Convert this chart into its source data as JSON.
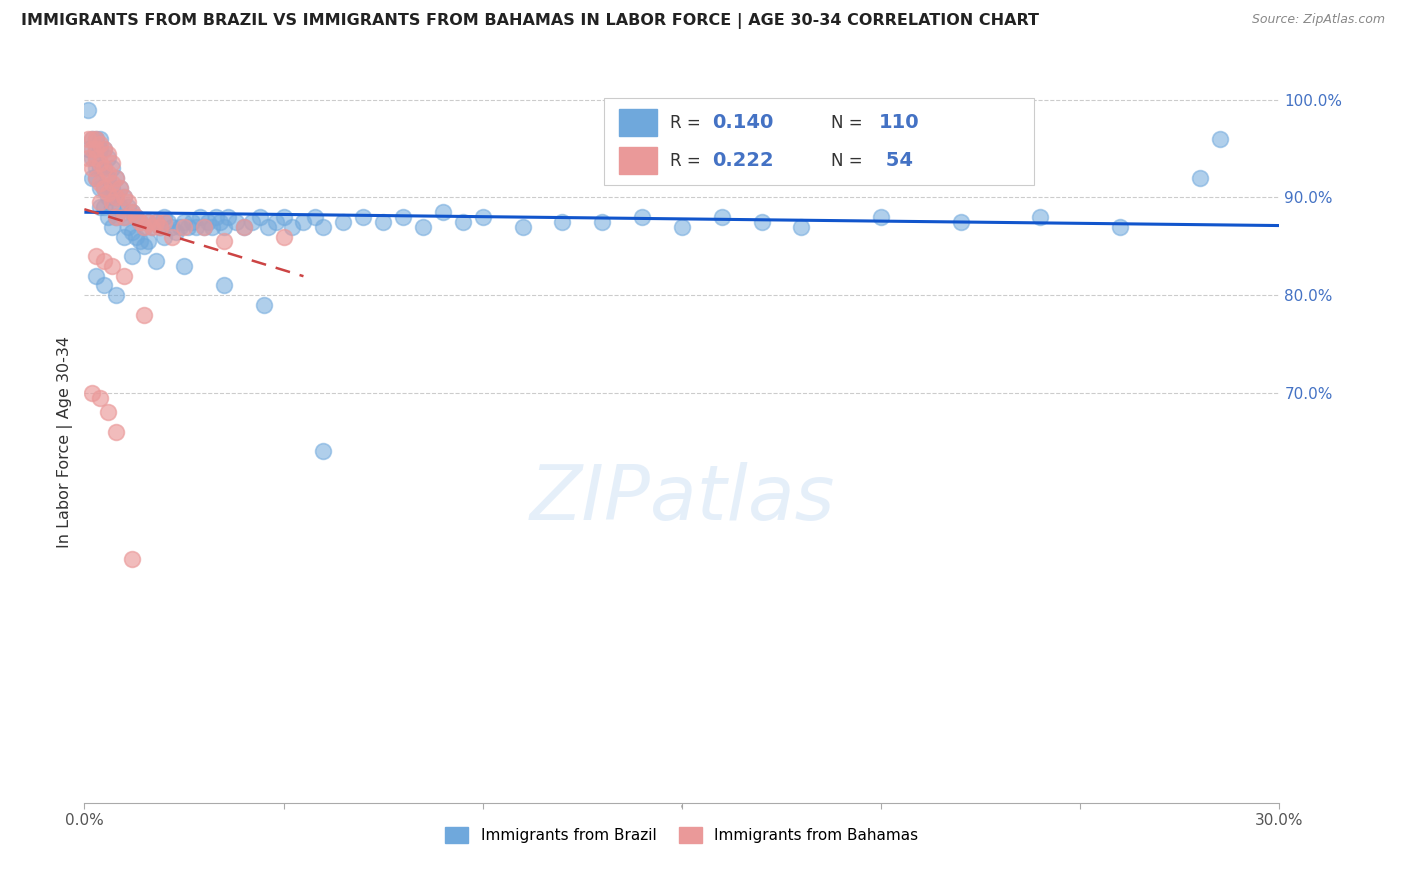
{
  "title": "IMMIGRANTS FROM BRAZIL VS IMMIGRANTS FROM BAHAMAS IN LABOR FORCE | AGE 30-34 CORRELATION CHART",
  "source": "Source: ZipAtlas.com",
  "ylabel": "In Labor Force | Age 30-34",
  "xlim": [
    0.0,
    0.3
  ],
  "ylim": [
    0.28,
    1.02
  ],
  "yticks_right": [
    0.7,
    0.8,
    0.9,
    1.0
  ],
  "ytick_right_labels": [
    "70.0%",
    "80.0%",
    "90.0%",
    "100.0%"
  ],
  "brazil_color": "#6fa8dc",
  "bahamas_color": "#ea9999",
  "brazil_line_color": "#1155cc",
  "bahamas_line_color": "#cc4444",
  "watermark": "ZIPatlas",
  "brazil_r": "0.140",
  "brazil_n": "110",
  "bahamas_r": "0.222",
  "bahamas_n": "54",
  "brazil_x": [
    0.001,
    0.001,
    0.002,
    0.002,
    0.002,
    0.003,
    0.003,
    0.003,
    0.003,
    0.003,
    0.004,
    0.004,
    0.004,
    0.004,
    0.004,
    0.005,
    0.005,
    0.005,
    0.005,
    0.006,
    0.006,
    0.006,
    0.006,
    0.007,
    0.007,
    0.007,
    0.007,
    0.008,
    0.008,
    0.008,
    0.009,
    0.009,
    0.01,
    0.01,
    0.01,
    0.011,
    0.011,
    0.012,
    0.012,
    0.013,
    0.013,
    0.014,
    0.014,
    0.015,
    0.015,
    0.016,
    0.016,
    0.017,
    0.018,
    0.019,
    0.02,
    0.02,
    0.021,
    0.022,
    0.023,
    0.024,
    0.025,
    0.026,
    0.027,
    0.028,
    0.029,
    0.03,
    0.031,
    0.032,
    0.033,
    0.034,
    0.035,
    0.036,
    0.038,
    0.04,
    0.042,
    0.044,
    0.046,
    0.048,
    0.05,
    0.052,
    0.055,
    0.058,
    0.06,
    0.065,
    0.07,
    0.075,
    0.08,
    0.085,
    0.09,
    0.095,
    0.1,
    0.11,
    0.12,
    0.13,
    0.14,
    0.15,
    0.16,
    0.17,
    0.18,
    0.2,
    0.22,
    0.24,
    0.26,
    0.28,
    0.003,
    0.005,
    0.008,
    0.012,
    0.018,
    0.025,
    0.035,
    0.045,
    0.06,
    0.285
  ],
  "brazil_y": [
    0.99,
    0.95,
    0.96,
    0.94,
    0.92,
    0.96,
    0.95,
    0.94,
    0.93,
    0.92,
    0.96,
    0.95,
    0.93,
    0.91,
    0.89,
    0.95,
    0.93,
    0.91,
    0.89,
    0.94,
    0.92,
    0.9,
    0.88,
    0.93,
    0.91,
    0.89,
    0.87,
    0.92,
    0.9,
    0.88,
    0.91,
    0.89,
    0.9,
    0.88,
    0.86,
    0.89,
    0.87,
    0.885,
    0.865,
    0.88,
    0.86,
    0.875,
    0.855,
    0.87,
    0.85,
    0.875,
    0.855,
    0.87,
    0.875,
    0.87,
    0.88,
    0.86,
    0.875,
    0.87,
    0.865,
    0.87,
    0.875,
    0.87,
    0.875,
    0.87,
    0.88,
    0.87,
    0.875,
    0.87,
    0.88,
    0.875,
    0.87,
    0.88,
    0.875,
    0.87,
    0.875,
    0.88,
    0.87,
    0.875,
    0.88,
    0.87,
    0.875,
    0.88,
    0.87,
    0.875,
    0.88,
    0.875,
    0.88,
    0.87,
    0.885,
    0.875,
    0.88,
    0.87,
    0.875,
    0.875,
    0.88,
    0.87,
    0.88,
    0.875,
    0.87,
    0.88,
    0.875,
    0.88,
    0.87,
    0.92,
    0.82,
    0.81,
    0.8,
    0.84,
    0.835,
    0.83,
    0.81,
    0.79,
    0.64,
    0.96
  ],
  "bahamas_x": [
    0.001,
    0.001,
    0.002,
    0.002,
    0.002,
    0.003,
    0.003,
    0.003,
    0.003,
    0.004,
    0.004,
    0.004,
    0.004,
    0.005,
    0.005,
    0.005,
    0.006,
    0.006,
    0.006,
    0.007,
    0.007,
    0.007,
    0.008,
    0.008,
    0.008,
    0.009,
    0.01,
    0.01,
    0.011,
    0.012,
    0.013,
    0.014,
    0.015,
    0.016,
    0.017,
    0.018,
    0.019,
    0.02,
    0.022,
    0.025,
    0.03,
    0.035,
    0.04,
    0.05,
    0.003,
    0.005,
    0.007,
    0.01,
    0.015,
    0.002,
    0.004,
    0.006,
    0.008,
    0.012
  ],
  "bahamas_y": [
    0.96,
    0.94,
    0.96,
    0.95,
    0.93,
    0.96,
    0.95,
    0.94,
    0.92,
    0.955,
    0.935,
    0.915,
    0.895,
    0.95,
    0.93,
    0.91,
    0.945,
    0.925,
    0.905,
    0.935,
    0.915,
    0.895,
    0.92,
    0.9,
    0.88,
    0.91,
    0.9,
    0.88,
    0.895,
    0.885,
    0.88,
    0.875,
    0.87,
    0.875,
    0.87,
    0.875,
    0.87,
    0.875,
    0.86,
    0.87,
    0.87,
    0.855,
    0.87,
    0.86,
    0.84,
    0.835,
    0.83,
    0.82,
    0.78,
    0.7,
    0.695,
    0.68,
    0.66,
    0.53
  ]
}
